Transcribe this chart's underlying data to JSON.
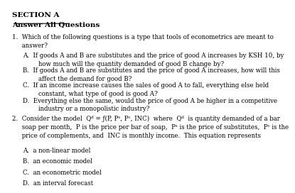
{
  "background_color": "#ffffff",
  "section_title": "SECTION A",
  "section_subtitle": "Answer All Questions",
  "q1_stem": "1.  Which of the following questions is a type that tools of econometrics are meant to\n     answer?",
  "q1_options": [
    "A.  If goods A and B are substitutes and the price of good A increases by KSH 10, by\n        how much will the quantity demanded of good B change by?",
    "B.  If goods A and B are substitutes and the price of good A increases, how will this\n        affect the demand for good B?",
    "C.  If an income increase causes the sales of good A to fall, everything else held\n        constant, what type of good is good A?",
    "D.  Everything else the same, would the price of good A be higher in a competitive\n        industry or a monopolistic industry?"
  ],
  "q2_line1": "2.  Consider the model  Qᵈ = ƒ(P, Pˢ, Pᶜ, INC)  where  Qᵈ  is quantity demanded of a bar",
  "q2_line2": "     soap per month,  P is the price per bar of soap,  Pˢ is the price of substitutes,  Pᶜ is the",
  "q2_line3": "     price of complements, and  INC is monthly income.  This equation represents",
  "q2_options": [
    "A.  a non-linear model",
    "B.  an economic model",
    "C.  an econometric model",
    "D.  an interval forecast"
  ],
  "font_size_title": 7.5,
  "font_size_body": 6.2,
  "text_color": "#000000"
}
